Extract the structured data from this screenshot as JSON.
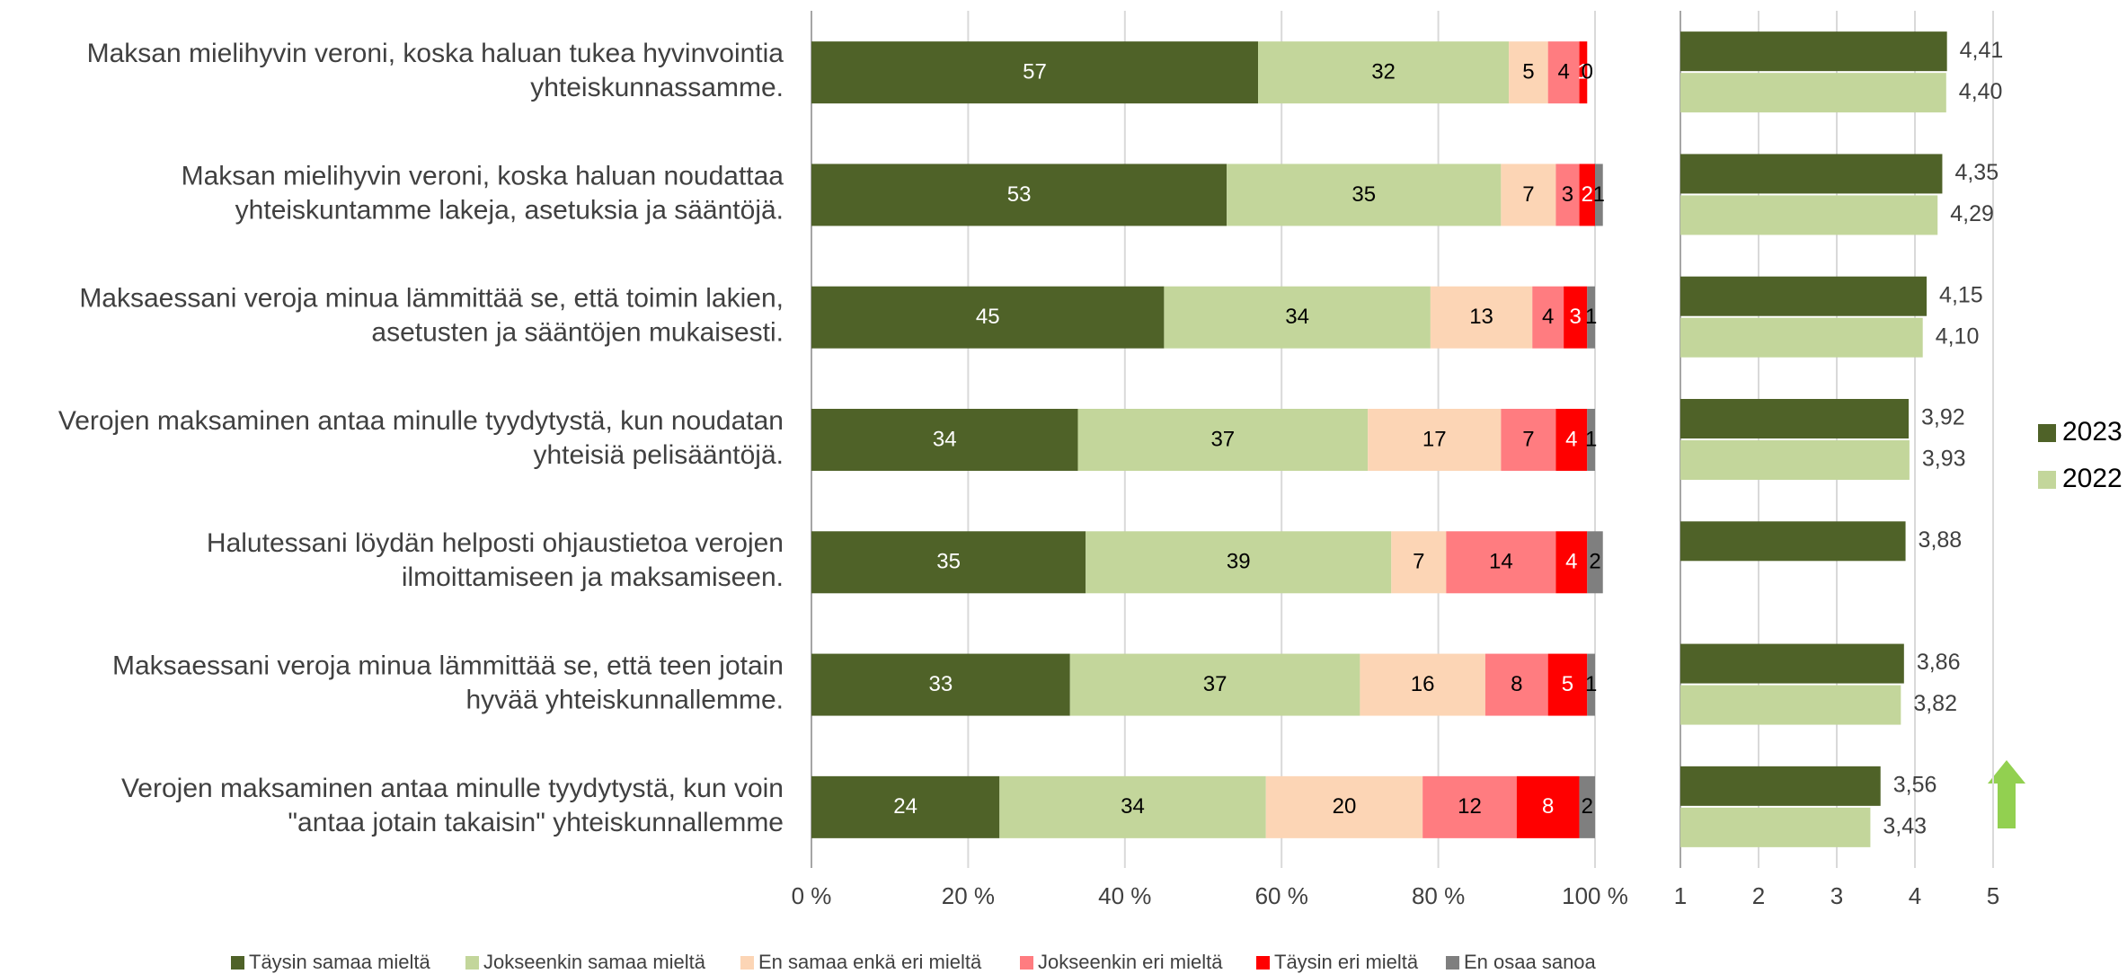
{
  "chart_data": [
    {
      "type": "stacked-bar",
      "categories": [
        [
          "Maksan mielihyvin veroni, koska haluan tukea hyvinvointia",
          "yhteiskunnassamme."
        ],
        [
          "Maksan mielihyvin veroni, koska haluan noudattaa",
          "yhteiskuntamme lakeja, asetuksia ja sääntöjä."
        ],
        [
          "Maksaessani veroja minua lämmittää se, että toimin lakien,",
          "asetusten ja sääntöjen mukaisesti."
        ],
        [
          "Verojen maksaminen antaa minulle tyydytystä, kun noudatan",
          "yhteisiä pelisääntöjä."
        ],
        [
          "Halutessani löydän helposti ohjaustietoa verojen",
          "ilmoittamiseen ja maksamiseen."
        ],
        [
          "Maksaessani veroja minua lämmittää se, että teen jotain",
          "hyvää yhteiskunnallemme."
        ],
        [
          "Verojen maksaminen antaa minulle tyydytystä, kun voin",
          "\"antaa jotain takaisin\" yhteiskunnallemme"
        ]
      ],
      "series": [
        {
          "name": "Täysin samaa mieltä",
          "color": "#4f6228",
          "label_color": "#ffffff",
          "values": [
            57,
            53,
            45,
            34,
            35,
            33,
            24
          ]
        },
        {
          "name": "Jokseenkin samaa mieltä",
          "color": "#c3d69b",
          "label_color": "#000000",
          "values": [
            32,
            35,
            34,
            37,
            39,
            37,
            34
          ]
        },
        {
          "name": "En samaa enkä eri mieltä",
          "color": "#fcd5b5",
          "label_color": "#000000",
          "values": [
            5,
            7,
            13,
            17,
            7,
            16,
            20
          ]
        },
        {
          "name": "Jokseenkin eri mieltä",
          "color": "#ff7c80",
          "label_color": "#000000",
          "values": [
            4,
            3,
            4,
            7,
            14,
            8,
            12
          ]
        },
        {
          "name": "Täysin eri mieltä",
          "color": "#ff0000",
          "label_color": "#ffffff",
          "values": [
            1,
            2,
            3,
            4,
            4,
            5,
            8
          ]
        },
        {
          "name": "En osaa sanoa",
          "color": "#7f7f7f",
          "label_color": "#000000",
          "values": [
            0,
            1,
            1,
            1,
            2,
            1,
            2
          ]
        }
      ],
      "xlim": [
        0,
        100
      ],
      "xticks": [
        {
          "value": 0,
          "label": "0 %"
        },
        {
          "value": 20,
          "label": "20 %"
        },
        {
          "value": 40,
          "label": "40 %"
        },
        {
          "value": 60,
          "label": "60 %"
        },
        {
          "value": 80,
          "label": "80 %"
        },
        {
          "value": 100,
          "label": "100 %"
        }
      ],
      "grid": true,
      "legend": "bottom"
    },
    {
      "type": "grouped-bar",
      "series": [
        {
          "name": "2023",
          "color": "#4f6228",
          "values": [
            4.41,
            4.35,
            4.15,
            3.92,
            3.88,
            3.86,
            3.56
          ],
          "value_labels": [
            "4,41",
            "4,35",
            "4,15",
            "3,92",
            "3,88",
            "3,86",
            "3,56"
          ]
        },
        {
          "name": "2022",
          "color": "#c3d69b",
          "values": [
            4.4,
            4.29,
            4.1,
            3.93,
            null,
            3.82,
            3.43
          ],
          "value_labels": [
            "4,40",
            "4,29",
            "4,10",
            "3,93",
            null,
            "3,82",
            "3,43"
          ]
        }
      ],
      "xlim": [
        1,
        5
      ],
      "xticks": [
        1,
        2,
        3,
        4,
        5
      ],
      "grid": true,
      "legend": "right"
    }
  ]
}
